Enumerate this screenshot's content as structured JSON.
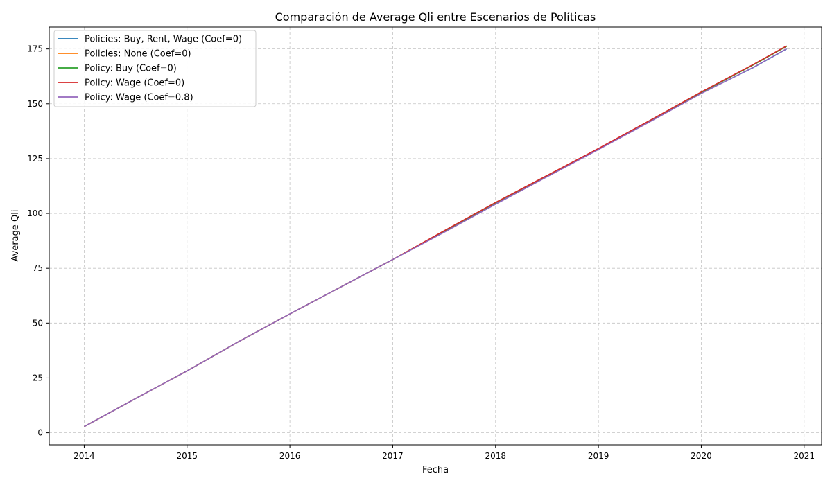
{
  "chart_data": {
    "type": "line",
    "title": "Comparación de Average Qli entre Escenarios de Políticas",
    "xlabel": "Fecha",
    "ylabel": "Average Qli",
    "xlim": [
      2013.66,
      2021.17
    ],
    "ylim": [
      -5.5,
      185
    ],
    "xticks": [
      2014,
      2015,
      2016,
      2017,
      2018,
      2019,
      2020,
      2021
    ],
    "yticks": [
      0,
      25,
      50,
      75,
      100,
      125,
      150,
      175
    ],
    "grid": true,
    "legend_position": "top-left",
    "x": [
      2014.0,
      2014.5,
      2015.0,
      2015.5,
      2016.0,
      2016.5,
      2017.0,
      2017.5,
      2018.0,
      2018.5,
      2019.0,
      2019.5,
      2020.0,
      2020.5,
      2020.83
    ],
    "series": [
      {
        "name": "Policies: Buy, Rent, Wage (Coef=0)",
        "color": "#1f77b4",
        "values": [
          2.8,
          15.6,
          28.2,
          41.5,
          54.2,
          66.6,
          79.0,
          91.5,
          104.3,
          116.8,
          129.2,
          141.9,
          154.8,
          166.4,
          175.0
        ]
      },
      {
        "name": "Policies: None (Coef=0)",
        "color": "#ff7f0e",
        "values": [
          2.8,
          15.6,
          28.2,
          41.5,
          54.2,
          66.6,
          79.0,
          92.0,
          104.9,
          117.2,
          129.5,
          142.3,
          155.2,
          167.6,
          176.2
        ]
      },
      {
        "name": "Policy: Buy (Coef=0)",
        "color": "#2ca02c",
        "values": [
          2.8,
          15.6,
          28.2,
          41.5,
          54.2,
          66.6,
          79.0,
          92.0,
          104.9,
          117.2,
          129.5,
          142.3,
          155.2,
          167.6,
          176.2
        ]
      },
      {
        "name": "Policy: Wage (Coef=0)",
        "color": "#d62728",
        "values": [
          2.8,
          15.6,
          28.2,
          41.5,
          54.2,
          66.6,
          79.0,
          92.1,
          105.0,
          117.3,
          129.6,
          142.4,
          155.4,
          167.8,
          176.4
        ]
      },
      {
        "name": "Policy: Wage (Coef=0.8)",
        "color": "#9467bd",
        "values": [
          2.8,
          15.6,
          28.2,
          41.5,
          54.2,
          66.6,
          79.0,
          91.4,
          104.2,
          116.7,
          129.1,
          141.8,
          154.7,
          166.5,
          175.1
        ]
      }
    ]
  }
}
